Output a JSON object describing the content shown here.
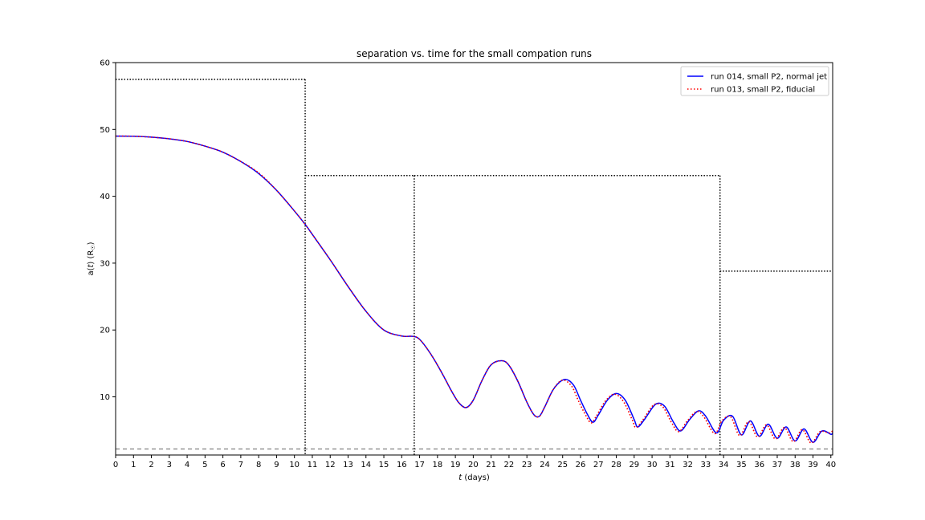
{
  "chart_data": {
    "type": "line",
    "title": "separation vs. time for the small compation runs",
    "xlabel_italic": "t",
    "xlabel_rest": " (days)",
    "ylabel_prefix": "a(",
    "ylabel_var": "t",
    "ylabel_suffix": ") (R",
    "ylabel_sub": "☉",
    "ylabel_close": ")",
    "xlim": [
      0,
      40.1
    ],
    "ylim": [
      1.3,
      60
    ],
    "xticks": [
      0,
      1,
      2,
      3,
      4,
      5,
      6,
      7,
      8,
      9,
      10,
      11,
      12,
      13,
      14,
      15,
      16,
      17,
      18,
      19,
      20,
      21,
      22,
      23,
      24,
      25,
      26,
      27,
      28,
      29,
      30,
      31,
      32,
      33,
      34,
      35,
      36,
      37,
      38,
      39,
      40
    ],
    "yticks": [
      10,
      20,
      30,
      40,
      50,
      60
    ],
    "legend_position": "top-right",
    "series": [
      {
        "name": "run 014, small P2, normal jet",
        "color": "#0000ff",
        "style": "solid",
        "x": [
          0,
          1,
          2,
          3,
          4,
          5,
          6,
          7,
          8,
          9,
          10,
          10.6,
          11,
          12,
          13,
          14,
          15,
          16,
          16.6,
          17,
          17.6,
          18.2,
          18.8,
          19.2,
          19.6,
          20,
          20.5,
          21,
          21.6,
          22,
          22.5,
          23,
          23.4,
          23.7,
          24,
          24.5,
          25.1,
          25.6,
          26,
          26.4,
          26.7,
          27,
          27.5,
          28,
          28.5,
          29,
          29.2,
          29.6,
          30.2,
          30.7,
          31.2,
          31.6,
          32.1,
          32.6,
          33,
          33.6,
          34,
          34.5,
          35,
          35.5,
          36,
          36.5,
          37,
          37.5,
          38,
          38.5,
          39,
          39.5,
          40,
          40.1
        ],
        "y": [
          49,
          48.98,
          48.85,
          48.6,
          48.2,
          47.5,
          46.6,
          45.2,
          43.4,
          40.9,
          37.8,
          35.8,
          34.3,
          30.5,
          26.5,
          22.8,
          20.0,
          19.1,
          19.05,
          18.6,
          16.5,
          13.8,
          10.8,
          9.1,
          8.4,
          9.5,
          12.5,
          14.8,
          15.4,
          14.7,
          12.3,
          9.2,
          7.3,
          7.1,
          8.5,
          11.2,
          12.6,
          11.8,
          9.5,
          7.3,
          6.2,
          7.3,
          9.5,
          10.5,
          9.5,
          6.6,
          5.5,
          6.7,
          8.9,
          8.6,
          6.2,
          4.9,
          6.6,
          7.9,
          7.1,
          4.6,
          6.5,
          7.1,
          4.3,
          6.4,
          4.1,
          5.9,
          3.8,
          5.5,
          3.4,
          5.2,
          3.2,
          4.9,
          4.4,
          4.6
        ]
      },
      {
        "name": "run 013, small P2, fiducial",
        "color": "#ff0000",
        "style": "dotted",
        "x": [
          0,
          1,
          2,
          3,
          4,
          5,
          6,
          7,
          8,
          9,
          10,
          10.6,
          11,
          12,
          13,
          14,
          15,
          16,
          16.6,
          17,
          17.6,
          18.2,
          18.8,
          19.2,
          19.6,
          20,
          20.5,
          21,
          21.6,
          22,
          22.5,
          23,
          23.4,
          23.7,
          24,
          24.5,
          25,
          25.5,
          25.9,
          26.3,
          26.6,
          26.9,
          27.4,
          27.9,
          28.4,
          28.9,
          29.1,
          29.5,
          30.1,
          30.6,
          31.1,
          31.5,
          32,
          32.5,
          32.9,
          33.5,
          33.9,
          34.4,
          34.9,
          35.4,
          35.9,
          36.4,
          36.9,
          37.4,
          37.9,
          38.4,
          38.9,
          39.4,
          39.9,
          40.1
        ],
        "y": [
          49,
          48.98,
          48.85,
          48.6,
          48.2,
          47.5,
          46.6,
          45.2,
          43.5,
          40.9,
          37.8,
          35.8,
          34.3,
          30.5,
          26.5,
          22.8,
          20.0,
          19.1,
          19.05,
          18.6,
          16.5,
          13.8,
          10.8,
          9.1,
          8.4,
          9.5,
          12.5,
          14.8,
          15.4,
          14.7,
          12.3,
          9.2,
          7.3,
          7.1,
          8.5,
          11.2,
          12.5,
          11.6,
          9.3,
          7.2,
          6.1,
          7.2,
          9.4,
          10.4,
          9.3,
          6.5,
          5.4,
          6.6,
          8.8,
          8.5,
          6.1,
          4.8,
          6.5,
          7.8,
          7.0,
          4.5,
          6.4,
          7.0,
          4.2,
          6.3,
          4.0,
          5.8,
          3.7,
          5.4,
          3.3,
          5.1,
          3.1,
          4.8,
          4.6,
          4.9
        ]
      }
    ],
    "reference_lines": {
      "dashed_y": 2.2,
      "dashed_color": "#808080",
      "dotted_segments": [
        {
          "x": [
            0,
            10.6
          ],
          "y": 57.5
        },
        {
          "x": [
            10.6,
            16.7
          ],
          "y": 43.1
        },
        {
          "x": [
            16.7,
            33.8
          ],
          "y": 43.1
        },
        {
          "x": [
            33.8,
            40.1
          ],
          "y": 28.8
        }
      ],
      "dotted_verticals": [
        10.6,
        16.7,
        33.8
      ]
    }
  }
}
